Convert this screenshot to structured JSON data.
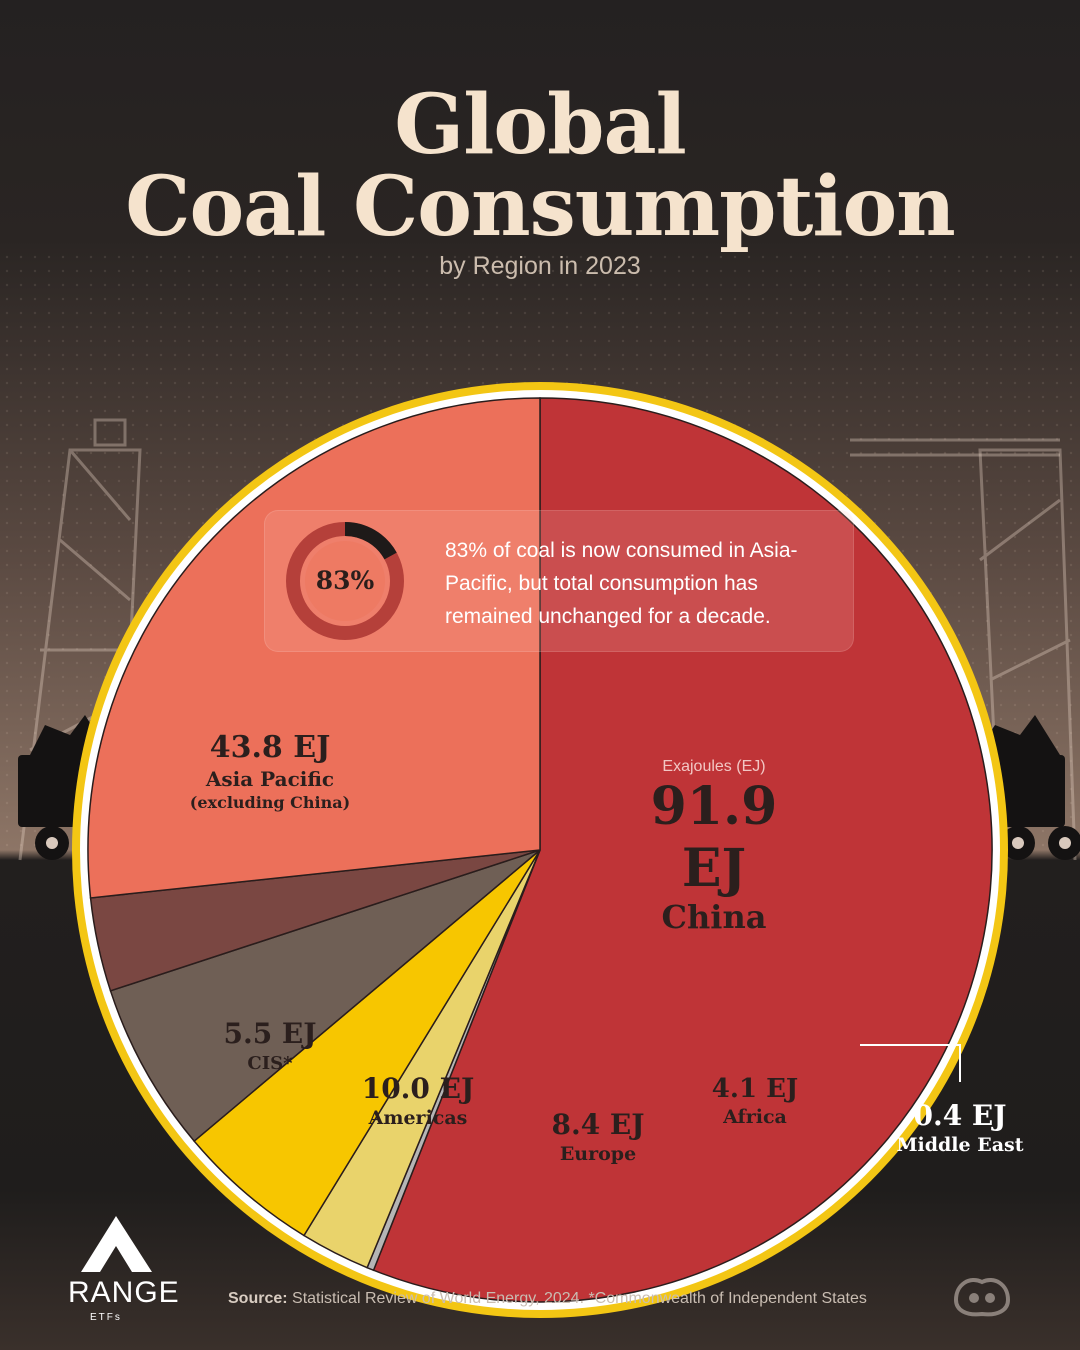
{
  "header": {
    "title_line1": "Global",
    "title_line2": "Coal Consumption",
    "subtitle": "by Region in 2023"
  },
  "callout": {
    "donut_label": "83%",
    "donut_percent": 83,
    "text": "83% of coal is now consumed in Asia-Pacific, but total consumption has remained unchanged for a decade."
  },
  "unit_note": "Exajoules (EJ)",
  "chart_data": {
    "type": "pie",
    "unit": "EJ",
    "slices": [
      {
        "name": "China",
        "value": 91.9,
        "label": "91.9 EJ",
        "color": "#bf3437"
      },
      {
        "name": "Middle East",
        "value": 0.4,
        "label": "0.4 EJ",
        "color": "#b5b5b5"
      },
      {
        "name": "Africa",
        "value": 4.1,
        "label": "4.1 EJ",
        "color": "#e9d36b"
      },
      {
        "name": "Europe",
        "value": 8.4,
        "label": "8.4 EJ",
        "color": "#f7c600"
      },
      {
        "name": "Americas",
        "value": 10.0,
        "label": "10.0 EJ",
        "color": "#6f5f55"
      },
      {
        "name": "CIS*",
        "value": 5.5,
        "label": "5.5 EJ",
        "color": "#7a4742"
      },
      {
        "name": "Asia Pacific",
        "sublabel": "(excluding China)",
        "value": 43.8,
        "label": "43.8 EJ",
        "color": "#ec705a"
      }
    ]
  },
  "footer": {
    "source_label": "Source:",
    "source_text": " Statistical Review of World Energy, 2024. *Commonwealth of Independent States",
    "brand_word": "RANGE",
    "brand_sub": "ETFs"
  }
}
